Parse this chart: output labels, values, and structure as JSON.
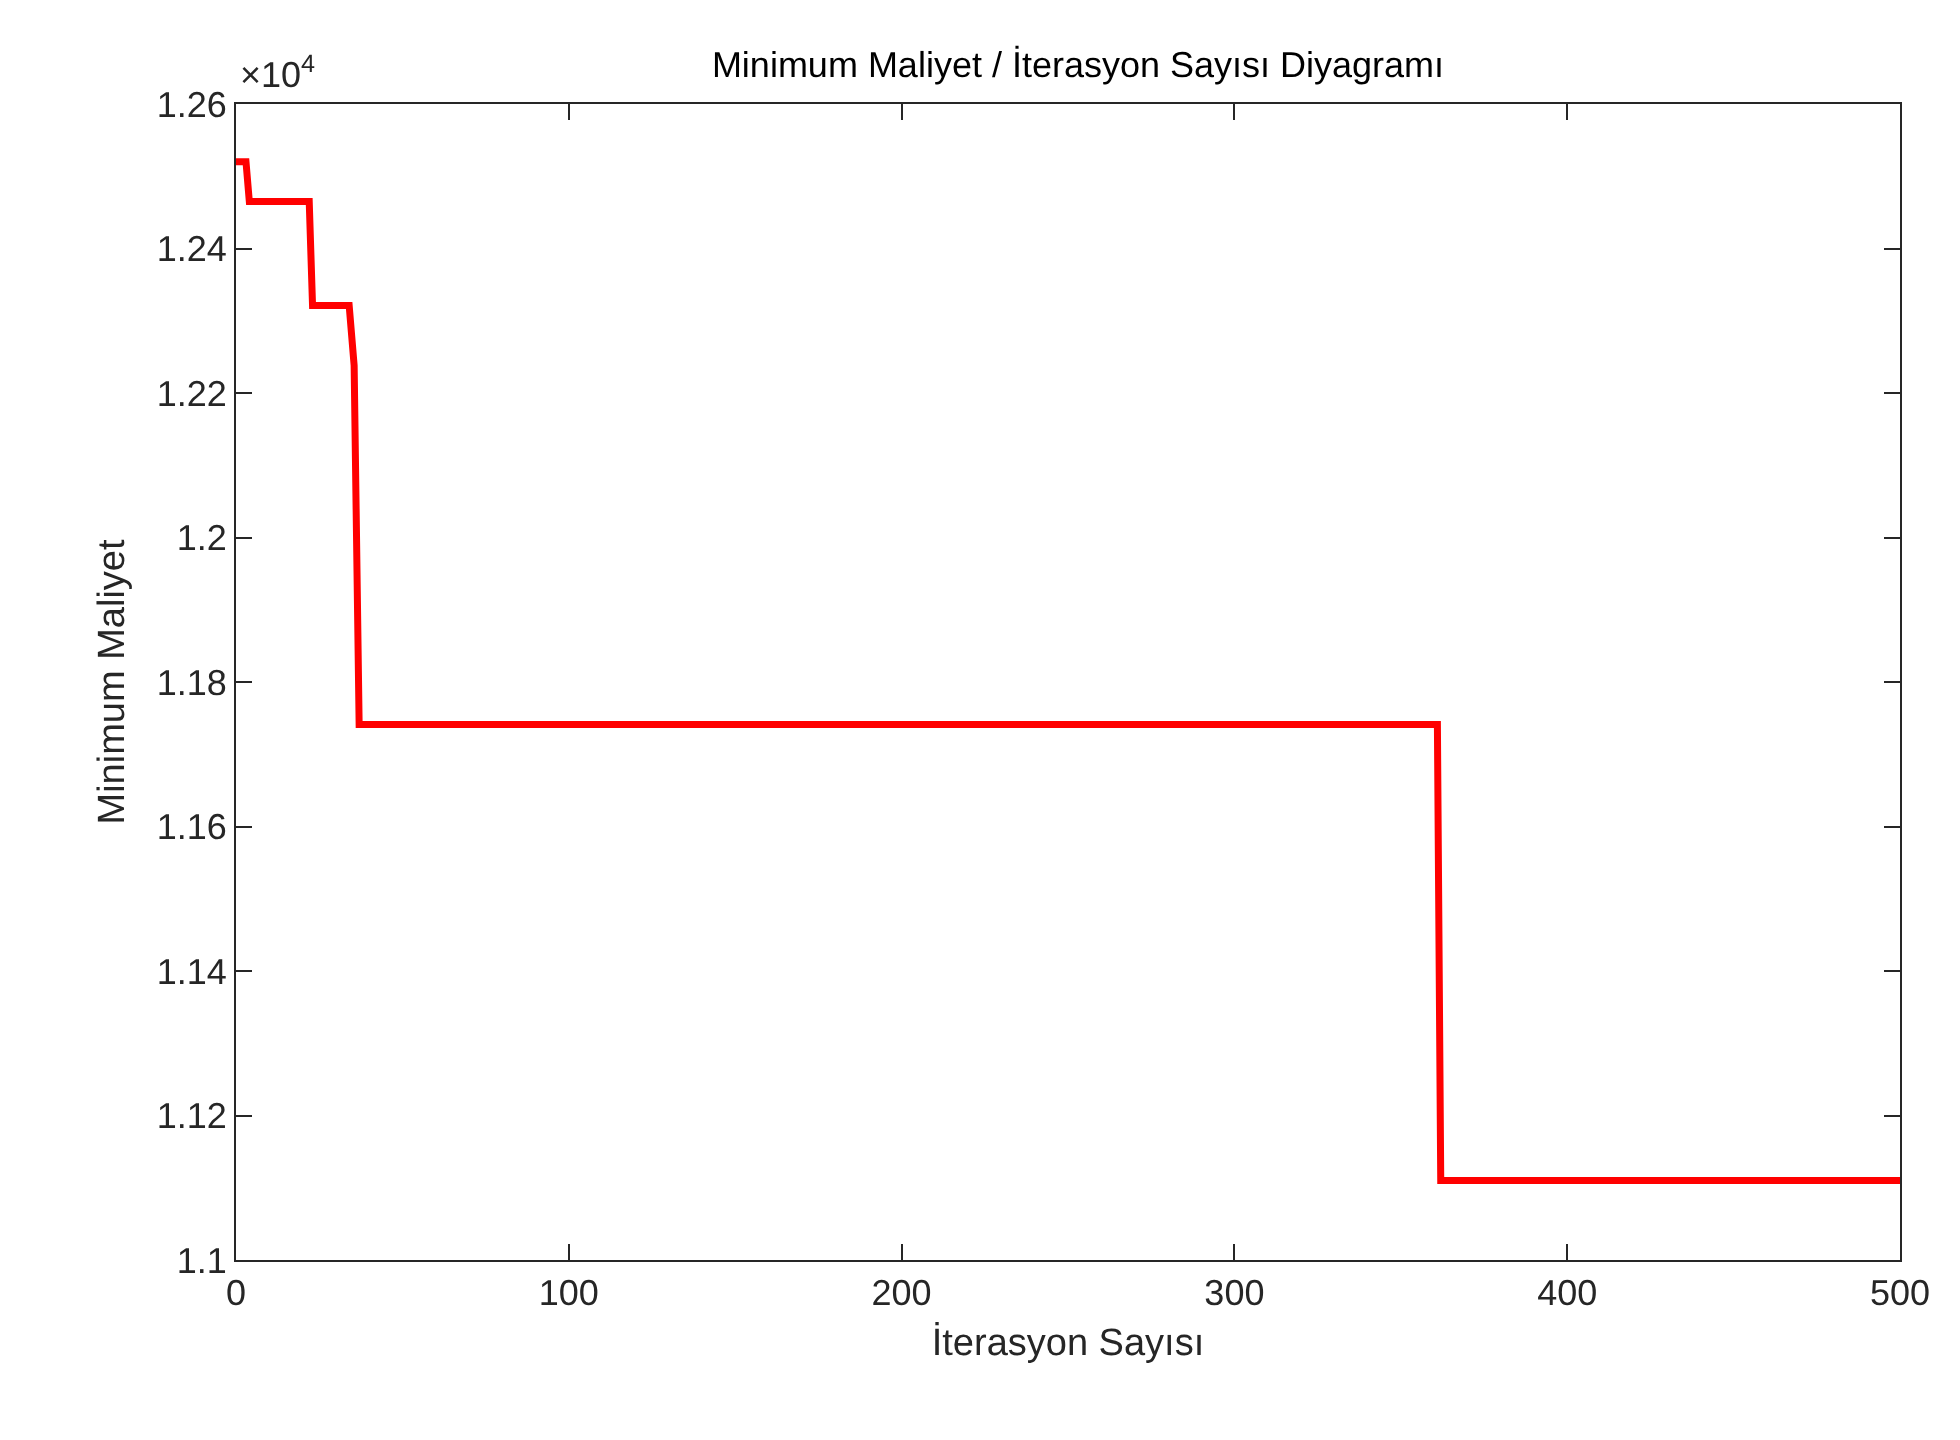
{
  "chart_data": {
    "type": "line",
    "title": "Minimum Maliyet / İterasyon Sayısı Diyagramı",
    "xlabel": "İterasyon Sayısı",
    "ylabel": "Minimum Maliyet",
    "annotations": [
      "×10$^{4}$"
    ],
    "x": [
      0,
      3,
      4,
      22,
      23,
      34,
      35.5,
      37,
      361,
      362,
      500
    ],
    "series": [
      {
        "color": "#ff0000",
        "values": [
          1.252,
          1.252,
          1.2465,
          1.2465,
          1.2321,
          1.2321,
          1.2238,
          1.1741,
          1.1741,
          1.111,
          1.111
        ]
      }
    ],
    "xlim": [
      0,
      500
    ],
    "xticks": [
      0,
      100,
      200,
      300,
      400,
      500
    ],
    "ylim": [
      1.1,
      1.26
    ],
    "yticks": [
      1.1,
      1.12,
      1.14,
      1.16,
      1.18,
      1.2,
      1.22,
      1.24,
      1.26
    ],
    "line_style": "solid"
  }
}
